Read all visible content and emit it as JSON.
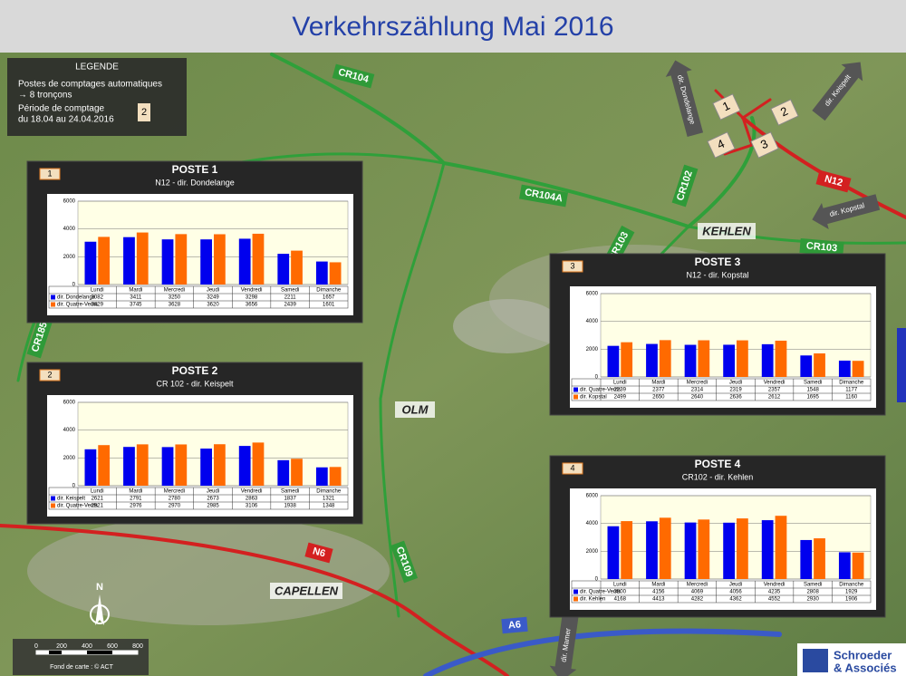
{
  "title": "Verkehrszählung Mai 2016",
  "legend": {
    "heading": "LEGENDE",
    "lines": [
      "Postes de comptages automatiques",
      "→ 8 tronçons",
      "Période de comptage",
      "du 18.04 au 24.04.2016"
    ],
    "badge": "2"
  },
  "junction_badges": [
    "1",
    "2",
    "3",
    "4"
  ],
  "roads": [
    "CR104",
    "CR104A",
    "CR102",
    "CR103",
    "N12",
    "CR185",
    "N6",
    "CR109",
    "A6"
  ],
  "places": [
    "KEHLEN",
    "OLM",
    "CAPELLEN"
  ],
  "directions": [
    "dir. Dondelange",
    "dir. Keispelt",
    "dir. Kopstal",
    "dir. Mamer"
  ],
  "north": "N",
  "scale": [
    "0",
    "200",
    "400",
    "600",
    "800"
  ],
  "credit": "Fond de carte : © ACT",
  "logo": [
    "Schroeder",
    "& Associés"
  ],
  "chart_data": [
    {
      "type": "bar",
      "badge": "1",
      "title": "POSTE 1",
      "subtitle": "N12 - dir. Dondelange",
      "categories": [
        "Lundi",
        "Mardi",
        "Mercredi",
        "Jeudi",
        "Vendredi",
        "Samedi",
        "Dimanche"
      ],
      "ylim": [
        0,
        6000
      ],
      "yticks": [
        0,
        2000,
        4000,
        6000
      ],
      "series": [
        {
          "name": "dir. Dondelange",
          "color": "#0000ee",
          "values": [
            3082,
            3411,
            3250,
            3249,
            3298,
            2211,
            1657
          ]
        },
        {
          "name": "dir. Quatre-Vents",
          "color": "#ff6a00",
          "values": [
            3429,
            3745,
            3628,
            3620,
            3656,
            2439,
            1601
          ]
        }
      ]
    },
    {
      "type": "bar",
      "badge": "2",
      "title": "POSTE 2",
      "subtitle": "CR 102 - dir. Keispelt",
      "categories": [
        "Lundi",
        "Mardi",
        "Mercredi",
        "Jeudi",
        "Vendredi",
        "Samedi",
        "Dimanche"
      ],
      "ylim": [
        0,
        6000
      ],
      "yticks": [
        0,
        2000,
        4000,
        6000
      ],
      "series": [
        {
          "name": "dir. Keispelt",
          "color": "#0000ee",
          "values": [
            2621,
            2791,
            2780,
            2673,
            2863,
            1837,
            1321
          ]
        },
        {
          "name": "dir. Quatre-Vents",
          "color": "#ff6a00",
          "values": [
            2921,
            2976,
            2970,
            2985,
            3106,
            1938,
            1348
          ]
        }
      ]
    },
    {
      "type": "bar",
      "badge": "3",
      "title": "POSTE 3",
      "subtitle": "N12 - dir. Kopstal",
      "categories": [
        "Lundi",
        "Mardi",
        "Mercredi",
        "Jeudi",
        "Vendredi",
        "Samedi",
        "Dimanche"
      ],
      "ylim": [
        0,
        6000
      ],
      "yticks": [
        0,
        2000,
        4000,
        6000
      ],
      "series": [
        {
          "name": "dir. Quatre-Vents",
          "color": "#0000ee",
          "values": [
            2239,
            2377,
            2314,
            2319,
            2357,
            1548,
            1177
          ]
        },
        {
          "name": "dir. Kopstal",
          "color": "#ff6a00",
          "values": [
            2499,
            2650,
            2640,
            2636,
            2612,
            1695,
            1160
          ]
        }
      ]
    },
    {
      "type": "bar",
      "badge": "4",
      "title": "POSTE 4",
      "subtitle": "CR102 - dir. Kehlen",
      "categories": [
        "Lundi",
        "Mardi",
        "Mercredi",
        "Jeudi",
        "Vendredi",
        "Samedi",
        "Dimanche"
      ],
      "ylim": [
        0,
        6000
      ],
      "yticks": [
        0,
        2000,
        4000,
        6000
      ],
      "series": [
        {
          "name": "dir. Quatre-Vents",
          "color": "#0000ee",
          "values": [
            3800,
            4156,
            4069,
            4056,
            4235,
            2808,
            1929
          ]
        },
        {
          "name": "dir. Kehlen",
          "color": "#ff6a00",
          "values": [
            4168,
            4413,
            4282,
            4362,
            4552,
            2930,
            1906
          ]
        }
      ]
    }
  ]
}
